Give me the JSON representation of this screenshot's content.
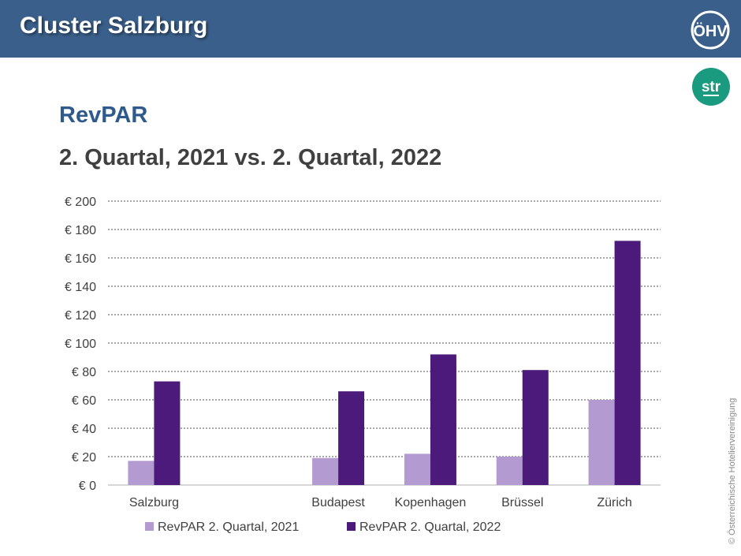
{
  "header": {
    "title": "Cluster Salzburg",
    "logo_text": "ÖHV",
    "str_logo_text": "str"
  },
  "section_title": "RevPAR",
  "subtitle": "2. Quartal, 2021 vs. 2. Quartal, 2022",
  "copyright": "© Österreichische Hoteliervereinigung",
  "colors": {
    "header_bg": "#3a5f8a",
    "series_2021": "#b39ad0",
    "series_2022": "#4b1a7a",
    "str_logo": "#1a9a7f"
  },
  "chart_data": {
    "type": "bar",
    "categories": [
      "Salzburg",
      "",
      "Budapest",
      "Kopenhagen",
      "Brüssel",
      "Zürich"
    ],
    "series": [
      {
        "name": "RevPAR 2. Quartal, 2021",
        "values": [
          17,
          null,
          19,
          22,
          20,
          60
        ]
      },
      {
        "name": "RevPAR 2. Quartal, 2022",
        "values": [
          73,
          null,
          66,
          92,
          81,
          172
        ]
      }
    ],
    "y_ticks": [
      "€ 0",
      "€ 20",
      "€ 40",
      "€ 60",
      "€ 80",
      "€ 100",
      "€ 120",
      "€ 140",
      "€ 160",
      "€ 180",
      "€ 200"
    ],
    "ylim": [
      0,
      200
    ],
    "y_step": 20,
    "grid": true,
    "legend": "bottom"
  }
}
